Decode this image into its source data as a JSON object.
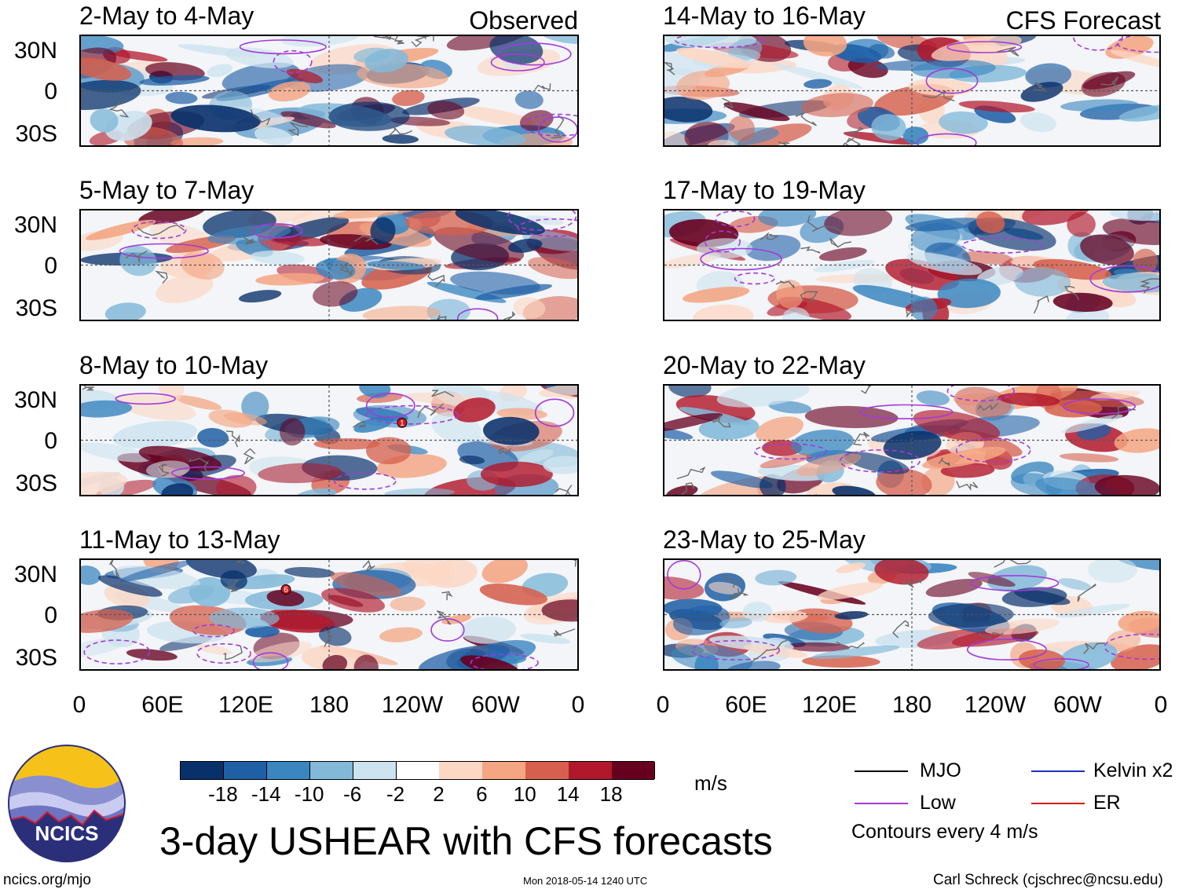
{
  "chart_data": {
    "type": "heatmap",
    "title": "3-day USHEAR with CFS forecasts",
    "variable": "USHEAR",
    "units": "m/s",
    "columns": [
      {
        "label": "Observed",
        "panels": [
          {
            "title": "2-May to 4-May"
          },
          {
            "title": "5-May to 7-May"
          },
          {
            "title": "8-May to 10-May"
          },
          {
            "title": "11-May to 13-May"
          }
        ]
      },
      {
        "label": "CFS Forecast",
        "panels": [
          {
            "title": "14-May to 16-May"
          },
          {
            "title": "17-May to 19-May"
          },
          {
            "title": "20-May to 22-May"
          },
          {
            "title": "23-May to 25-May"
          }
        ]
      }
    ],
    "lat_ticks": [
      "30N",
      "0",
      "30S"
    ],
    "lon_ticks": [
      "0",
      "60E",
      "120E",
      "180",
      "120W",
      "60W",
      "0"
    ],
    "colorbar": {
      "levels": [
        "-18",
        "-14",
        "-10",
        "-6",
        "-2",
        "2",
        "6",
        "10",
        "14",
        "18"
      ],
      "colors": [
        "#08306b",
        "#1f5fa6",
        "#3a86c0",
        "#82b9d9",
        "#cde3ef",
        "#ffffff",
        "#fcd7c4",
        "#f4a582",
        "#d6604d",
        "#b2182b",
        "#67001f"
      ]
    },
    "legend": {
      "items": [
        {
          "label": "MJO",
          "color": "#000000"
        },
        {
          "label": "Kelvin x2",
          "color": "#1f2fbf"
        },
        {
          "label": "Low",
          "color": "#a23bd8"
        },
        {
          "label": "ER",
          "color": "#d11b1b"
        }
      ],
      "note": "Contours every 4 m/s"
    },
    "storm_markers": [
      {
        "panel": "8-May to 10-May",
        "label": "1"
      },
      {
        "panel": "11-May to 13-May",
        "label": "6"
      }
    ]
  },
  "logo": {
    "text": "NCICS"
  },
  "footer": {
    "left": "ncics.org/mjo",
    "center": "Mon 2018-05-14 1240 UTC",
    "right": "Carl Schreck (cjschrec@ncsu.edu)"
  }
}
